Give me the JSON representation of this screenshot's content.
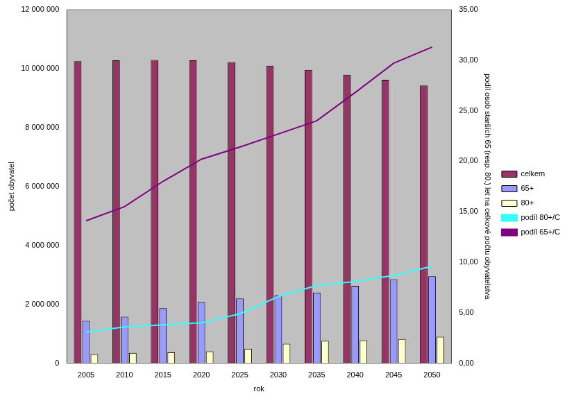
{
  "chart_data": {
    "type": "bar",
    "x_label": "rok",
    "y_label": "počet obyvatel",
    "y2_label": "podíl osob starších 65 (resp. 80.) let na celkové počtu obyvatelstva",
    "categories": [
      "2005",
      "2010",
      "2015",
      "2020",
      "2025",
      "2030",
      "2035",
      "2040",
      "2045",
      "2050"
    ],
    "series": [
      {
        "name": "celkem",
        "type": "bar",
        "color": "#993366",
        "values": [
          10250000,
          10280000,
          10290000,
          10280000,
          10220000,
          10100000,
          9960000,
          9790000,
          9620000,
          9430000
        ]
      },
      {
        "name": "65+",
        "type": "bar",
        "color": "#9999ff",
        "values": [
          1440000,
          1580000,
          1870000,
          2080000,
          2200000,
          2300000,
          2400000,
          2630000,
          2850000,
          2950000
        ]
      },
      {
        "name": "80+",
        "type": "bar",
        "color": "#ffffcc",
        "values": [
          300000,
          350000,
          370000,
          400000,
          490000,
          660000,
          760000,
          780000,
          820000,
          900000
        ]
      },
      {
        "name": "podíl 80+/C",
        "type": "line",
        "axis": "y2",
        "color": "#33ffff",
        "values": [
          3.1,
          3.6,
          3.8,
          4.0,
          4.9,
          6.6,
          7.7,
          8.1,
          8.7,
          9.6
        ]
      },
      {
        "name": "podíl 65+/C",
        "type": "line",
        "axis": "y2",
        "color": "#800080",
        "values": [
          14.1,
          15.5,
          18.0,
          20.2,
          21.4,
          22.7,
          24.0,
          26.8,
          29.7,
          31.3
        ]
      }
    ],
    "ylim": [
      0,
      12000000
    ],
    "yticks": [
      {
        "value": 0,
        "label": "0"
      },
      {
        "value": 2000000,
        "label": "2 000 000"
      },
      {
        "value": 4000000,
        "label": "4 000 000"
      },
      {
        "value": 6000000,
        "label": "6 000 000"
      },
      {
        "value": 8000000,
        "label": "8 000 000"
      },
      {
        "value": 10000000,
        "label": "10 000 000"
      },
      {
        "value": 12000000,
        "label": "12 000 000"
      }
    ],
    "y2lim": [
      0,
      35
    ],
    "y2ticks": [
      {
        "value": 0,
        "label": "0,00"
      },
      {
        "value": 5,
        "label": "5,00"
      },
      {
        "value": 10,
        "label": "10,00"
      },
      {
        "value": 15,
        "label": "15,00"
      },
      {
        "value": 20,
        "label": "20,00"
      },
      {
        "value": 25,
        "label": "25,00"
      },
      {
        "value": 30,
        "label": "30,00"
      },
      {
        "value": 35,
        "label": "35,00"
      }
    ],
    "grid": false,
    "legend": "right"
  }
}
